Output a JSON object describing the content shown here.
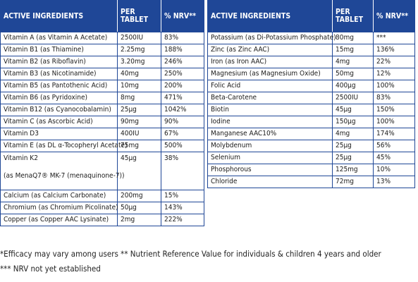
{
  "left_table": {
    "headers": [
      "ACTIVE INGREDIENTS",
      "PER TABLET",
      "% NRV**"
    ],
    "rows": [
      [
        "Vitamin A (as Vitamin A Acetate)",
        "2500IU",
        "83%"
      ],
      [
        "Vitamin B1 (as Thiamine)",
        "2.25mg",
        "188%"
      ],
      [
        "Vitamin B2 (as Riboflavin)",
        "3.20mg",
        "246%"
      ],
      [
        "Vitamin B3 (as Nicotinamide)",
        "40mg",
        "250%"
      ],
      [
        "Vitamin B5 (as Pantothenic Acid)",
        "10mg",
        "200%"
      ],
      [
        "Vitamin B6 (as Pyridoxine)",
        "8mg",
        "471%"
      ],
      [
        "Vitamin B12 (as Cyanocobalamin)",
        "25µg",
        "1042%"
      ],
      [
        "Vitamin C (as Ascorbic Acid)",
        "90mg",
        "90%"
      ],
      [
        "Vitamin D3",
        "400IU",
        "67%"
      ],
      [
        "Vitamin E (as DL α-Tocopheryl Acetate)",
        "75mg",
        "500%"
      ]
    ],
    "k2": {
      "name_line1": "Vitamin K2",
      "name_line2": "(as MenaQ7® MK-7 (menaquinone-7))",
      "amount": "45µg",
      "nrv": "38%"
    },
    "rows_after": [
      [
        "Calcium (as Calcium Carbonate)",
        "200mg",
        "15%"
      ],
      [
        "Chromium (as Chromium Picolinate)",
        "50µg",
        "143%"
      ],
      [
        "Copper (as Copper AAC Lysinate)",
        "2mg",
        "222%"
      ]
    ]
  },
  "right_table": {
    "headers": [
      "ACTIVE INGREDIENTS",
      "PER TABLET",
      "% NRV**"
    ],
    "rows": [
      [
        "Potassium (as Di-Potassium Phosphate)",
        "80mg",
        "***"
      ],
      [
        "Zinc (as Zinc AAC)",
        "15mg",
        "136%"
      ],
      [
        "Iron (as Iron AAC)",
        "4mg",
        "22%"
      ],
      [
        "Magnesium (as Magnesium Oxide)",
        "50mg",
        "12%"
      ],
      [
        "Folic Acid",
        "400µg",
        "100%"
      ],
      [
        "Beta-Carotene",
        "2500IU",
        "83%"
      ],
      [
        "Biotin",
        "45µg",
        "150%"
      ],
      [
        "Iodine",
        "150µg",
        "100%"
      ],
      [
        "Manganese AAC10%",
        "4mg",
        "174%"
      ],
      [
        "Molybdenum",
        "25µg",
        "56%"
      ],
      [
        "Selenium",
        "25µg",
        "45%"
      ],
      [
        "Phosphorous",
        "125mg",
        "10%"
      ],
      [
        "Chloride",
        "72mg",
        "13%"
      ]
    ]
  },
  "footnotes": {
    "line1": "*Efficacy may vary among users   ** Nutrient Reference Value for individuals & children 4 years and older",
    "line2": "*** NRV not yet established"
  },
  "colors": {
    "header_bg": "#1f4797",
    "border": "#1f4797"
  }
}
